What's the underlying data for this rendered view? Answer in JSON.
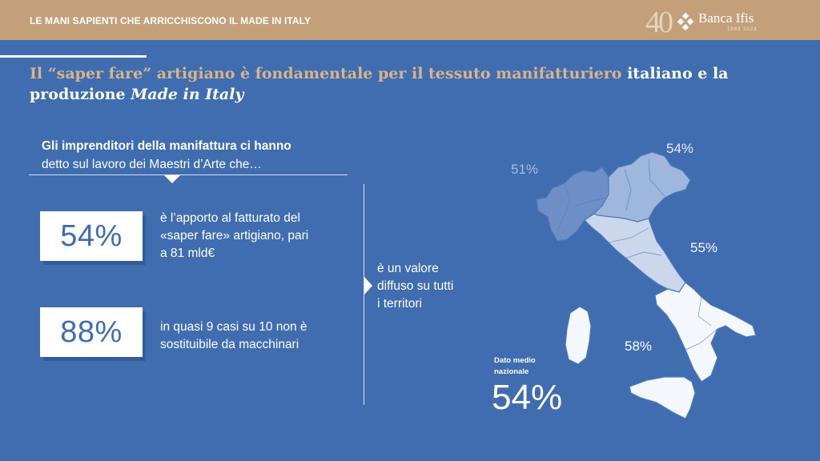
{
  "header": {
    "title": "LE MANI SAPIENTI CHE ARRICCHISCONO IL MADE IN ITALY",
    "logo": {
      "anniversary": "40",
      "brand": "Banca Ifis",
      "years": "1983 2023",
      "icon": "banca-ifis-diamond-logo-icon"
    }
  },
  "headline": {
    "part_gold": "Il “saper fare” artigiano è fondamentale per il tessuto manifatturiero ",
    "part_white": "italiano e la produzione ",
    "part_italic": "Made in Italy"
  },
  "intro": {
    "bold": "Gli imprenditori della manifattura ci hanno",
    "normal": "detto sul lavoro dei Maestri d’Arte che…"
  },
  "stats": [
    {
      "value": "54%",
      "line1": "è l’apporto al fatturato del",
      "line2": "«saper fare» artigiano, pari",
      "line3": "a 81 mld€"
    },
    {
      "value": "88%",
      "line1": "in quasi 9 casi su 10 non è",
      "line2": "sostituibile da macchinari"
    }
  ],
  "middle": {
    "line1": "è un valore",
    "line2": "diffuso su tutti",
    "line3": "i territori"
  },
  "map": {
    "regions": [
      {
        "name": "Nord-Ovest",
        "value": "51%",
        "color": "#6d8fc6"
      },
      {
        "name": "Nord-Est",
        "value": "54%",
        "color": "#9fb7dc"
      },
      {
        "name": "Centro",
        "value": "55%",
        "color": "#cbd8ec"
      },
      {
        "name": "Sud e Isole",
        "value": "58%",
        "color": "#f4f7fb"
      }
    ]
  },
  "national": {
    "label_line1": "Dato medio",
    "label_line2": "nazionale",
    "value": "54%"
  },
  "colors": {
    "background": "#3f6db0",
    "topbar": "#c4a07a",
    "gold_text": "#d9b48a"
  }
}
